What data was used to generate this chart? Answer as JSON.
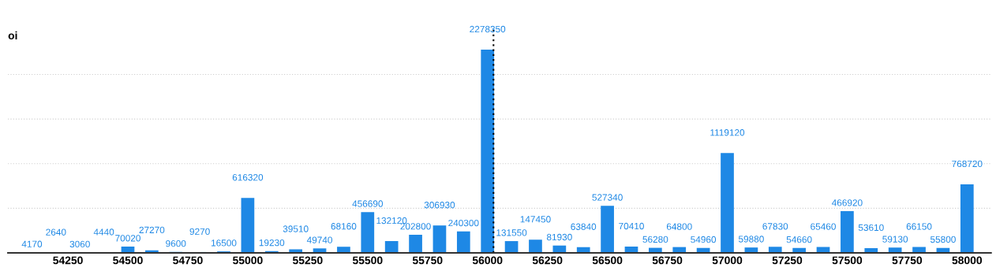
{
  "chart_data": {
    "type": "bar",
    "ylabel": "oi",
    "x": [
      54100,
      54200,
      54300,
      54400,
      54500,
      54600,
      54700,
      54800,
      54900,
      55000,
      55100,
      55200,
      55300,
      55400,
      55500,
      55600,
      55700,
      55800,
      55900,
      56000,
      56100,
      56200,
      56300,
      56400,
      56500,
      56600,
      56700,
      56800,
      56900,
      57000,
      57100,
      57200,
      57300,
      57400,
      57500,
      57600,
      57700,
      57800,
      57900,
      58000
    ],
    "series": [
      {
        "color": "#1e88e5",
        "values": [
          4170,
          2640,
          3060,
          4440,
          70020,
          27270,
          9600,
          9270,
          16500,
          616320,
          19230,
          39510,
          49740,
          68160,
          456690,
          132120,
          202800,
          306930,
          240300,
          2278350,
          131550,
          147450,
          81930,
          63840,
          527340,
          70410,
          56280,
          64800,
          54960,
          1119120,
          59880,
          67830,
          54660,
          65460,
          466920,
          53610,
          59130,
          66150,
          55800,
          768720
        ]
      }
    ],
    "data_labels": true,
    "xlim": [
      54000,
      58100
    ],
    "xticks": [
      54250,
      54500,
      54750,
      55000,
      55250,
      55500,
      55750,
      56000,
      56250,
      56500,
      56750,
      57000,
      57250,
      57500,
      57750,
      58000
    ],
    "ylim": [
      0,
      2500000
    ],
    "yticks": [
      {
        "value": 500000,
        "label": null
      },
      {
        "value": 1000000,
        "label": null
      },
      {
        "value": 1500000,
        "label": null
      },
      {
        "value": 2000000,
        "label": null
      }
    ],
    "tick_labels": "x",
    "grid": "y",
    "ref_lines": [
      {
        "axis": "x",
        "value": 56025,
        "color": "#000000",
        "line_style": "dotted"
      }
    ]
  }
}
